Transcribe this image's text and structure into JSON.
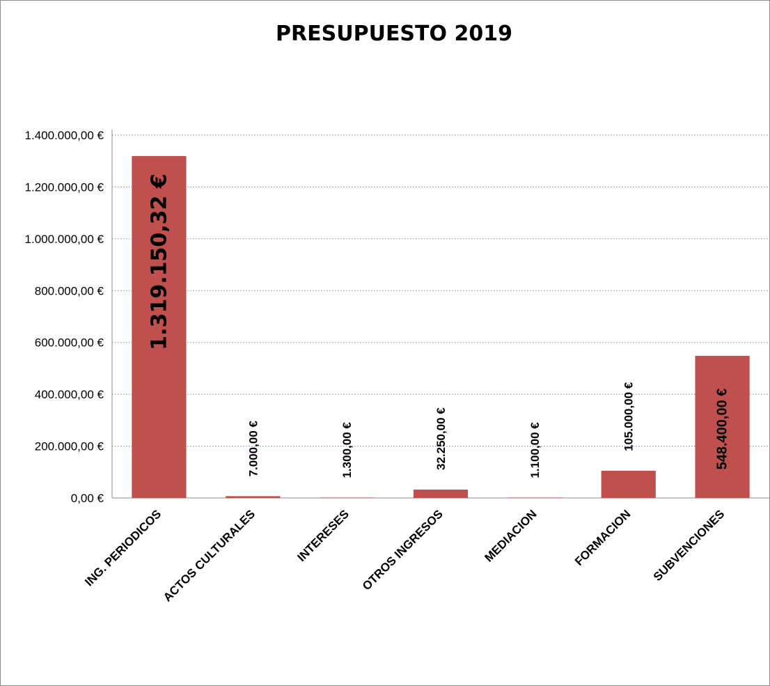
{
  "chart_data": {
    "type": "bar",
    "title": "PRESUPUESTO 2019",
    "xlabel": "",
    "ylabel": "",
    "categories": [
      "ING. PERIODICOS",
      "ACTOS CULTURALES",
      "INTERESES",
      "OTROS INGRESOS",
      "MEDIACION",
      "FORMACION",
      "SUBVENCIONES"
    ],
    "values": [
      1319150.32,
      7000,
      1300,
      32250,
      1100,
      105000,
      548400
    ],
    "data_labels": [
      "1.319.150,32 €",
      "7.000,00 €",
      "1.300,00 €",
      "32.250,00 €",
      "1.100,00 €",
      "105.000,00 €",
      "548.400,00 €"
    ],
    "ylim": [
      0,
      1400000
    ],
    "yticks": [
      0,
      200000,
      400000,
      600000,
      800000,
      1000000,
      1200000,
      1400000
    ],
    "ytick_labels": [
      "0,00 €",
      "200.000,00 €",
      "400.000,00 €",
      "600.000,00 €",
      "800.000,00 €",
      "1.000.000,00 €",
      "1.200.000,00 €",
      "1.400.000,00 €"
    ],
    "grid": true,
    "legend": "none",
    "bar_color": "#c0504d",
    "grid_color": "#4f81bd"
  }
}
